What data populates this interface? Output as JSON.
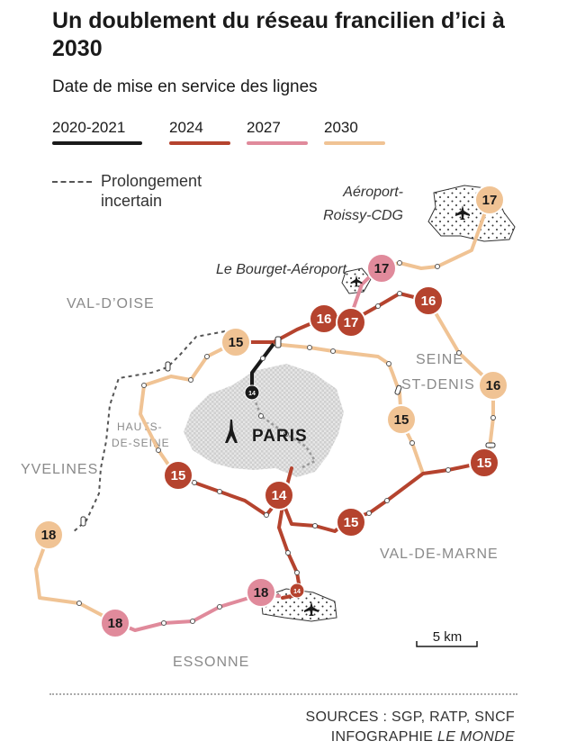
{
  "header": {
    "title": "Un doublement du réseau francilien d’ici à 2030",
    "subtitle": "Date de mise en service des lignes"
  },
  "legend": [
    {
      "label": "2020-2021",
      "color": "#1a1a1a"
    },
    {
      "label": "2024",
      "color": "#b5432e"
    },
    {
      "label": "2027",
      "color": "#e08a9b"
    },
    {
      "label": "2030",
      "color": "#f0c394"
    }
  ],
  "prolongement": {
    "line1": "Prolongement",
    "line2": "incertain"
  },
  "map": {
    "city": "PARIS",
    "departments": [
      "VAL-D’OISE",
      "YVELINES",
      "HAUTS-",
      "DE-SEINE",
      "SEINE-",
      "ST-DENIS",
      "VAL-DE-MARNE",
      "ESSONNE"
    ],
    "airports": [
      "Aéroport-",
      "Roissy-CDG",
      "Le Bourget-Aéroport"
    ],
    "scale": "5 km",
    "markers": [
      {
        "label": "17",
        "year": "2030"
      },
      {
        "label": "17",
        "year": "2027"
      },
      {
        "label": "16",
        "year": "2024"
      },
      {
        "label": "17",
        "year": "2024"
      },
      {
        "label": "16",
        "year": "2024"
      },
      {
        "label": "16",
        "year": "2030"
      },
      {
        "label": "15",
        "year": "2030"
      },
      {
        "label": "15",
        "year": "2030"
      },
      {
        "label": "15",
        "year": "2024"
      },
      {
        "label": "15",
        "year": "2024"
      },
      {
        "label": "14",
        "year": "2024"
      },
      {
        "label": "15",
        "year": "2024"
      },
      {
        "label": "18",
        "year": "2030"
      },
      {
        "label": "18",
        "year": "2027"
      },
      {
        "label": "18",
        "year": "2027"
      },
      {
        "label": "14",
        "year": "2020-2021"
      },
      {
        "label": "14",
        "year": "2024"
      }
    ]
  },
  "sources": {
    "line1": "SOURCES : SGP, RATP, SNCF",
    "line2_prefix": "INFOGRAPHIE ",
    "line2_italic": "LE MONDE"
  }
}
